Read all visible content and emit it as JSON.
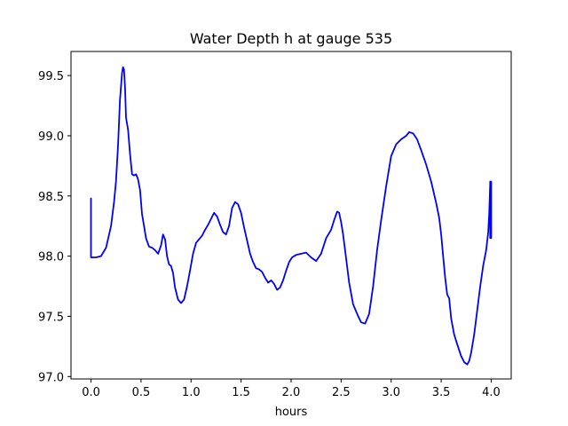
{
  "chart_data": {
    "type": "line",
    "title": "Water Depth h at gauge 535",
    "xlabel": "hours",
    "ylabel": "",
    "xlim": [
      -0.2,
      4.2
    ],
    "ylim": [
      96.98,
      99.7
    ],
    "xticks": [
      0.0,
      0.5,
      1.0,
      1.5,
      2.0,
      2.5,
      3.0,
      3.5,
      4.0
    ],
    "xtick_labels": [
      "0.0",
      "0.5",
      "1.0",
      "1.5",
      "2.0",
      "2.5",
      "3.0",
      "3.5",
      "4.0"
    ],
    "yticks": [
      97.0,
      97.5,
      98.0,
      98.5,
      99.0,
      99.5
    ],
    "ytick_labels": [
      "97.0",
      "97.5",
      "98.0",
      "98.5",
      "99.0",
      "99.5"
    ],
    "grid": false,
    "series": [
      {
        "color": "#0000ff",
        "x": [
          0.0,
          0.0,
          0.0,
          0.05,
          0.1,
          0.15,
          0.2,
          0.23,
          0.25,
          0.27,
          0.29,
          0.31,
          0.32,
          0.33,
          0.34,
          0.35,
          0.37,
          0.39,
          0.41,
          0.43,
          0.45,
          0.47,
          0.49,
          0.51,
          0.53,
          0.55,
          0.58,
          0.61,
          0.64,
          0.67,
          0.7,
          0.72,
          0.74,
          0.76,
          0.78,
          0.8,
          0.82,
          0.84,
          0.87,
          0.9,
          0.93,
          0.96,
          0.99,
          1.02,
          1.05,
          1.08,
          1.11,
          1.14,
          1.17,
          1.2,
          1.23,
          1.26,
          1.29,
          1.32,
          1.35,
          1.38,
          1.41,
          1.44,
          1.47,
          1.5,
          1.53,
          1.56,
          1.59,
          1.62,
          1.65,
          1.68,
          1.71,
          1.74,
          1.77,
          1.8,
          1.83,
          1.86,
          1.89,
          1.92,
          1.95,
          1.98,
          2.01,
          2.05,
          2.1,
          2.15,
          2.2,
          2.25,
          2.3,
          2.35,
          2.4,
          2.43,
          2.46,
          2.48,
          2.5,
          2.52,
          2.55,
          2.58,
          2.62,
          2.66,
          2.7,
          2.74,
          2.78,
          2.82,
          2.86,
          2.9,
          2.95,
          3.0,
          3.05,
          3.1,
          3.15,
          3.18,
          3.22,
          3.26,
          3.3,
          3.35,
          3.4,
          3.45,
          3.48,
          3.5,
          3.52,
          3.54,
          3.56,
          3.58,
          3.6,
          3.63,
          3.66,
          3.7,
          3.73,
          3.76,
          3.78,
          3.8,
          3.83,
          3.86,
          3.89,
          3.92,
          3.95,
          3.97,
          3.98,
          3.99,
          3.99,
          3.99,
          4.0,
          4.0
        ],
        "y": [
          98.48,
          98.23,
          97.99,
          97.99,
          98.0,
          98.07,
          98.25,
          98.45,
          98.62,
          98.92,
          99.3,
          99.52,
          99.57,
          99.55,
          99.4,
          99.15,
          99.05,
          98.85,
          98.68,
          98.67,
          98.68,
          98.64,
          98.55,
          98.35,
          98.25,
          98.15,
          98.08,
          98.07,
          98.05,
          98.02,
          98.09,
          98.18,
          98.14,
          98.0,
          97.93,
          97.92,
          97.86,
          97.74,
          97.64,
          97.61,
          97.64,
          97.75,
          97.88,
          98.02,
          98.11,
          98.14,
          98.17,
          98.22,
          98.26,
          98.31,
          98.36,
          98.33,
          98.26,
          98.2,
          98.18,
          98.25,
          98.4,
          98.45,
          98.43,
          98.36,
          98.24,
          98.13,
          98.02,
          97.95,
          97.9,
          97.89,
          97.87,
          97.82,
          97.78,
          97.8,
          97.77,
          97.72,
          97.74,
          97.8,
          97.88,
          97.95,
          97.99,
          98.01,
          98.02,
          98.03,
          97.99,
          97.96,
          98.02,
          98.15,
          98.22,
          98.3,
          98.37,
          98.36,
          98.28,
          98.18,
          97.98,
          97.78,
          97.6,
          97.52,
          97.45,
          97.44,
          97.52,
          97.75,
          98.05,
          98.3,
          98.58,
          98.83,
          98.93,
          98.97,
          99.0,
          99.03,
          99.02,
          98.97,
          98.88,
          98.76,
          98.62,
          98.44,
          98.32,
          98.18,
          98.0,
          97.82,
          97.68,
          97.65,
          97.48,
          97.35,
          97.27,
          97.17,
          97.12,
          97.1,
          97.13,
          97.2,
          97.35,
          97.55,
          97.75,
          97.92,
          98.05,
          98.2,
          98.35,
          98.6,
          98.62,
          98.15,
          98.62,
          98.15
        ]
      }
    ]
  }
}
